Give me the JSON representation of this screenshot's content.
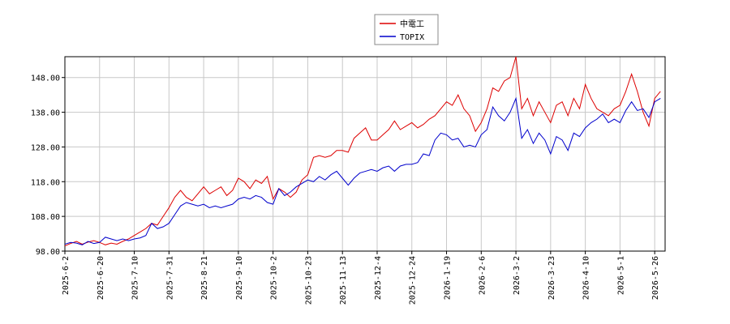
{
  "chart_data": {
    "type": "line",
    "categories": [
      "2025-6-2",
      null,
      null,
      null,
      null,
      null,
      "2025-6-20",
      null,
      null,
      null,
      null,
      null,
      "2025-7-10",
      null,
      null,
      null,
      null,
      null,
      "2025-7-31",
      null,
      null,
      null,
      null,
      null,
      "2025-8-21",
      null,
      null,
      null,
      null,
      null,
      "2025-9-10",
      null,
      null,
      null,
      null,
      null,
      "2025-10-2",
      null,
      null,
      null,
      null,
      null,
      "2025-10-23",
      null,
      null,
      null,
      null,
      null,
      "2025-11-13",
      null,
      null,
      null,
      null,
      null,
      "2025-12-4",
      null,
      null,
      null,
      null,
      null,
      "2025-12-24",
      null,
      null,
      null,
      null,
      null,
      "2026-1-19",
      null,
      null,
      null,
      null,
      null,
      "2026-2-6",
      null,
      null,
      null,
      null,
      null,
      "2026-3-2",
      null,
      null,
      null,
      null,
      null,
      "2026-3-23",
      null,
      null,
      null,
      null,
      null,
      "2026-4-10",
      null,
      null,
      null,
      null,
      null,
      "2026-5-1",
      null,
      null,
      null,
      null,
      null,
      "2026-5-26",
      null
    ],
    "series": [
      {
        "name": "中電工",
        "color": "#dd0000",
        "values": [
          99.5,
          100.2,
          100.8,
          100.0,
          100.6,
          101.0,
          100.5,
          99.8,
          100.3,
          100.0,
          100.8,
          101.5,
          102.5,
          103.5,
          104.5,
          106.0,
          105.5,
          108.0,
          110.5,
          113.5,
          115.5,
          113.5,
          112.5,
          114.5,
          116.5,
          114.5,
          115.5,
          116.5,
          114.0,
          115.5,
          119.0,
          118.0,
          116.0,
          118.5,
          117.5,
          119.5,
          113.0,
          116.0,
          115.0,
          113.5,
          115.0,
          118.5,
          120.0,
          125.0,
          125.5,
          125.0,
          125.5,
          127.0,
          127.0,
          126.5,
          130.5,
          132.0,
          133.5,
          130.0,
          130.0,
          131.5,
          133.0,
          135.5,
          133.0,
          134.0,
          135.0,
          133.5,
          134.5,
          136.0,
          137.0,
          139.0,
          141.0,
          140.0,
          143.0,
          139.0,
          137.0,
          132.5,
          135.0,
          139.0,
          145.0,
          144.0,
          147.0,
          148.0,
          154.0,
          139.0,
          142.0,
          137.0,
          141.0,
          138.0,
          135.0,
          140.0,
          141.0,
          137.0,
          142.0,
          139.0,
          146.0,
          142.0,
          139.0,
          138.0,
          137.0,
          139.0,
          140.0,
          144.0,
          149.0,
          144.0,
          138.0,
          134.0,
          142.0,
          144.0
        ]
      },
      {
        "name": "TOPIX",
        "color": "#0000cc",
        "values": [
          100.0,
          100.5,
          100.3,
          99.8,
          100.8,
          100.2,
          100.5,
          102.0,
          101.5,
          101.0,
          101.5,
          101.0,
          101.5,
          101.8,
          102.5,
          106.0,
          104.5,
          105.0,
          106.0,
          108.5,
          111.0,
          112.0,
          111.5,
          111.0,
          111.5,
          110.5,
          111.0,
          110.5,
          111.0,
          111.5,
          113.0,
          113.5,
          113.0,
          114.0,
          113.5,
          112.0,
          111.5,
          116.0,
          114.0,
          115.0,
          116.5,
          117.5,
          118.5,
          118.0,
          119.5,
          118.5,
          120.0,
          121.0,
          119.0,
          117.0,
          119.0,
          120.5,
          121.0,
          121.5,
          121.0,
          122.0,
          122.5,
          121.0,
          122.5,
          123.0,
          123.0,
          123.5,
          126.0,
          125.5,
          130.0,
          132.0,
          131.5,
          130.0,
          130.5,
          128.0,
          128.5,
          128.0,
          131.5,
          133.0,
          139.5,
          137.0,
          135.5,
          138.0,
          142.0,
          130.5,
          133.0,
          129.0,
          132.0,
          130.0,
          126.0,
          131.0,
          130.0,
          127.0,
          132.0,
          131.0,
          133.5,
          135.0,
          136.0,
          137.5,
          135.0,
          136.0,
          135.0,
          138.5,
          141.0,
          138.5,
          139.0,
          136.5,
          141.0,
          142.0
        ]
      }
    ],
    "ylim": [
      98,
      154
    ],
    "yticks": [
      {
        "value": 98,
        "label": "98.00"
      },
      {
        "value": 108,
        "label": "108.00"
      },
      {
        "value": 118,
        "label": "118.00"
      },
      {
        "value": 128,
        "label": "128.00"
      },
      {
        "value": 138,
        "label": "138.00"
      },
      {
        "value": 148,
        "label": "148.00"
      }
    ],
    "grid": true,
    "legend": "top"
  }
}
